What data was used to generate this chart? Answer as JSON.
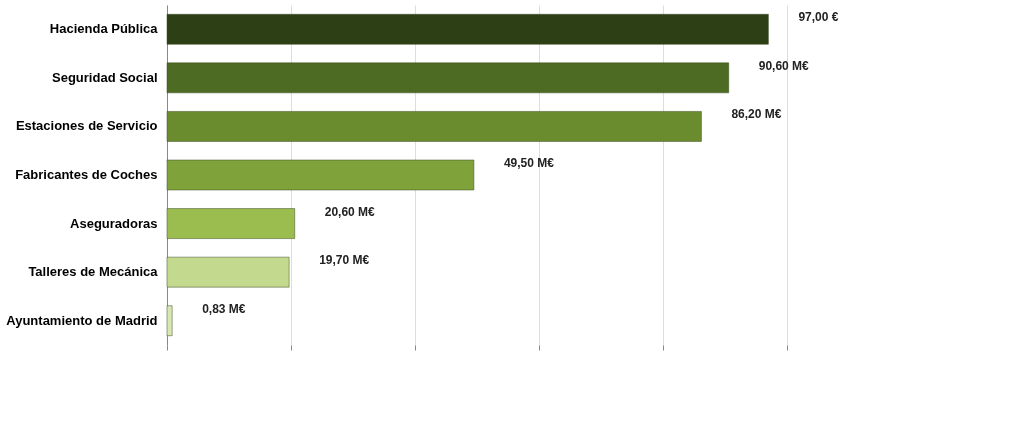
{
  "chart_data": {
    "type": "bar",
    "orientation": "horizontal",
    "categories": [
      "Hacienda Pública",
      "Seguridad Social",
      "Estaciones de Servicio",
      "Fabricantes de Coches",
      "Aseguradoras",
      "Talleres de Mecánica",
      "Ayuntamiento de Madrid"
    ],
    "values": [
      97,
      90.6,
      86.2,
      49.5,
      20.6,
      19.7,
      0.83
    ],
    "colors": [
      "#2d3f14",
      "#4d6b22",
      "#6b8c2e",
      "#7fa23a",
      "#9bbd50",
      "#c3da8e",
      "#d9e8b0"
    ],
    "value_labels": [
      "97,00 €",
      "90,60 M€",
      "86,20 M€",
      "49,50 M€",
      "20,60 M€",
      "19,70 M€",
      "0,83 M€"
    ],
    "xlim": [
      0,
      100
    ],
    "xticks": [
      {
        "value": 0,
        "label": null
      },
      {
        "value": 20,
        "label": null
      },
      {
        "value": 40,
        "label": null
      },
      {
        "value": 60,
        "label": null
      },
      {
        "value": 80,
        "label": null
      },
      {
        "value": 100,
        "label": null
      }
    ],
    "grid": "x",
    "legend": false
  }
}
